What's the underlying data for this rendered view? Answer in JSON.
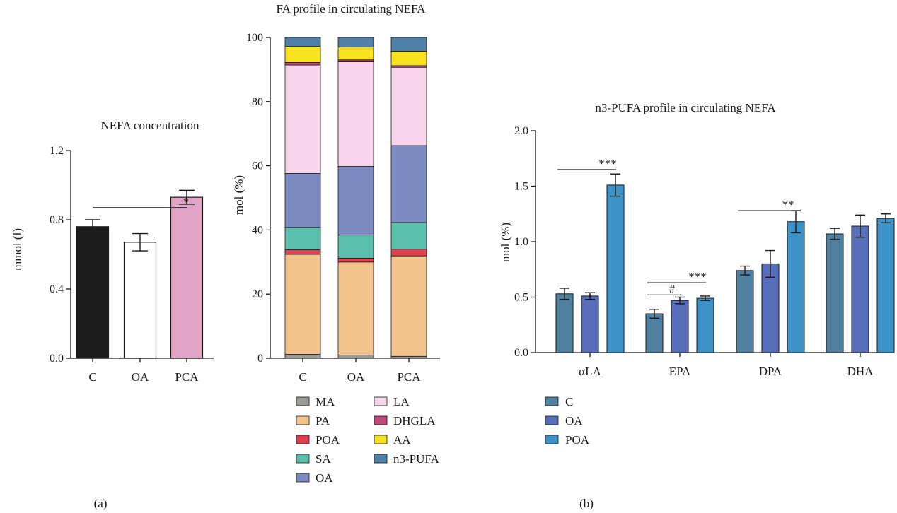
{
  "chart_data": [
    {
      "id": "nefa",
      "type": "bar",
      "title": "NEFA concentration",
      "ylabel": "mmol (l)",
      "ylim": [
        0,
        1.2
      ],
      "yticks": [
        "0.0",
        "0.4",
        "0.8",
        "1.2"
      ],
      "ytick_values": [
        0,
        0.4,
        0.8,
        1.2
      ],
      "categories": [
        "C",
        "OA",
        "PCA"
      ],
      "values": [
        0.76,
        0.67,
        0.93
      ],
      "errors": [
        0.04,
        0.05,
        0.04
      ],
      "colors": [
        "#1c1c1c",
        "#ffffff",
        "#e2a4c6"
      ],
      "significance": [
        {
          "from": 0,
          "to": 2,
          "level": 0.87,
          "label": "*"
        }
      ],
      "panel_label": "(a)"
    },
    {
      "id": "fa_profile",
      "type": "bar",
      "stacked": true,
      "title": "FA profile in circulating NEFA",
      "ylabel": "mol (%)",
      "ylim": [
        0,
        100
      ],
      "yticks": [
        "0",
        "20",
        "40",
        "60",
        "80",
        "100"
      ],
      "ytick_values": [
        0,
        20,
        40,
        60,
        80,
        100
      ],
      "categories": [
        "C",
        "OA",
        "PCA"
      ],
      "series": [
        {
          "name": "MA",
          "color": "#9b9b96",
          "values": [
            1.2,
            1.0,
            0.6
          ]
        },
        {
          "name": "PA",
          "color": "#f3c38e",
          "values": [
            31.2,
            29.0,
            31.3
          ]
        },
        {
          "name": "POA",
          "color": "#e0404f",
          "values": [
            1.4,
            1.2,
            2.1
          ]
        },
        {
          "name": "SA",
          "color": "#5bbfab",
          "values": [
            7.0,
            7.2,
            8.3
          ]
        },
        {
          "name": "OA",
          "color": "#7c8bc2",
          "values": [
            16.8,
            21.4,
            24.0
          ]
        },
        {
          "name": "LA",
          "color": "#f8d5ea",
          "values": [
            33.8,
            32.6,
            24.4
          ]
        },
        {
          "name": "DHGLA",
          "color": "#bd4a79",
          "values": [
            0.8,
            0.6,
            0.5
          ]
        },
        {
          "name": "AA",
          "color": "#f8e11f",
          "values": [
            5.0,
            4.0,
            4.5
          ]
        },
        {
          "name": "n3-PUFA",
          "color": "#4f80a7",
          "values": [
            2.8,
            3.0,
            4.3
          ]
        }
      ]
    },
    {
      "id": "n3",
      "type": "bar",
      "title": "n3-PUFA profile in circulating NEFA",
      "ylabel": "mol (%)",
      "ylim": [
        0,
        2.0
      ],
      "yticks": [
        "0.0",
        "0.5",
        "1.0",
        "1.5",
        "2.0"
      ],
      "ytick_values": [
        0,
        0.5,
        1.0,
        1.5,
        2.0
      ],
      "categories": [
        "αLA",
        "EPA",
        "DPA",
        "DHA"
      ],
      "series": [
        {
          "name": "C",
          "color": "#50809f",
          "values": [
            0.53,
            0.35,
            0.74,
            1.07
          ],
          "errors": [
            0.05,
            0.04,
            0.04,
            0.05
          ]
        },
        {
          "name": "OA",
          "color": "#586ebb",
          "values": [
            0.51,
            0.47,
            0.8,
            1.14
          ],
          "errors": [
            0.03,
            0.03,
            0.12,
            0.1
          ]
        },
        {
          "name": "POA",
          "color": "#3d93c8",
          "values": [
            1.51,
            0.49,
            1.18,
            1.21
          ],
          "errors": [
            0.1,
            0.02,
            0.1,
            0.04
          ]
        }
      ],
      "significance": [
        {
          "category": 0,
          "from": 0,
          "to": 2,
          "level": 1.65,
          "label": "***"
        },
        {
          "category": 1,
          "from": 0,
          "to": 2,
          "level": 0.63,
          "label": "***"
        },
        {
          "category": 1,
          "from": 0,
          "to": 1,
          "level": 0.52,
          "label": "#"
        },
        {
          "category": 2,
          "from": 0,
          "to": 2,
          "level": 1.28,
          "label": "**"
        }
      ],
      "panel_label": "(b)"
    }
  ]
}
